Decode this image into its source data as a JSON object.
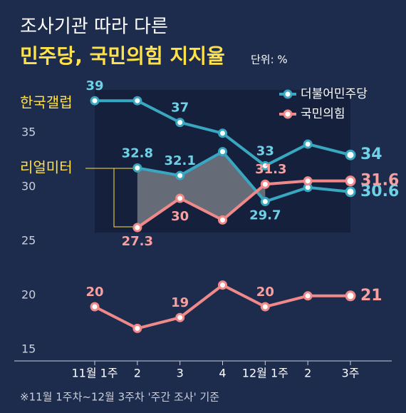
{
  "chart_data": {
    "type": "line",
    "title": "조사기관 따라 다른",
    "subtitle": "민주당, 국민의힘 지지율",
    "unit": "단위: %",
    "footnote": "※11월 1주차~12월 3주차 '주간 조사' 기준",
    "categories": [
      "11월 1주",
      "2",
      "3",
      "4",
      "12월 1주",
      "2",
      "3주"
    ],
    "ylim": [
      15,
      40
    ],
    "yticks": [
      15,
      20,
      25,
      30,
      35
    ],
    "legend": "top-right",
    "groups": [
      {
        "label": "한국갤럽",
        "series": [
          {
            "name": "더불어민주당",
            "color": "#3aa7c0",
            "values": [
              39,
              39,
              37,
              36,
              33,
              35,
              34
            ],
            "value_labels": [
              "39",
              null,
              "37",
              null,
              "33",
              null,
              "34"
            ]
          },
          {
            "name": "국민의힘",
            "color": "#f08a8a",
            "values": [
              20,
              18,
              19,
              22,
              20,
              21,
              21
            ],
            "value_labels": [
              "20",
              null,
              "19",
              null,
              "20",
              null,
              "21"
            ]
          }
        ]
      },
      {
        "label": "리얼미터",
        "series": [
          {
            "name": "더불어민주당",
            "color": "#3aa7c0",
            "values": [
              null,
              32.8,
              32.1,
              34.3,
              29.7,
              31,
              30.6
            ],
            "value_labels": [
              null,
              "32.8",
              "32.1",
              null,
              "29.7",
              null,
              "30.6"
            ]
          },
          {
            "name": "국민의힘",
            "color": "#f08a8a",
            "values": [
              null,
              27.3,
              30,
              28,
              31.3,
              31.6,
              31.6
            ],
            "value_labels": [
              null,
              "27.3",
              "30",
              null,
              "31.3",
              null,
              "31.6"
            ]
          }
        ]
      }
    ]
  }
}
